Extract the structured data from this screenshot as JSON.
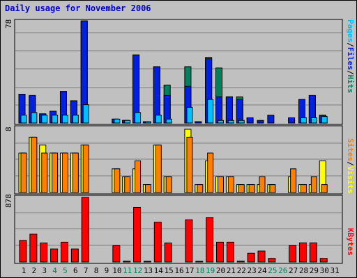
{
  "title": "Daily usage for November 2006",
  "colors": {
    "pages": "#00c0ff",
    "files": "#0020e0",
    "hits": "#00805c",
    "visits": "#ffff00",
    "sites": "#ff8000",
    "kbytes": "#ff0000",
    "weekend_day": "#00805c"
  },
  "labels": {
    "pages": "Pages",
    "files": "Files",
    "hits": "Hits",
    "visits": "Visits",
    "sites": "Sites",
    "kbytes": "KBytes",
    "sep": "/"
  },
  "chart_data": {
    "type": "bar",
    "title": "Daily usage for November 2006",
    "x": [
      1,
      2,
      3,
      4,
      5,
      6,
      7,
      8,
      9,
      10,
      11,
      12,
      13,
      14,
      15,
      16,
      17,
      18,
      19,
      20,
      21,
      22,
      23,
      24,
      25,
      26,
      27,
      28,
      29,
      30,
      31
    ],
    "weekend_days": [
      4,
      5,
      11,
      12,
      18,
      19,
      25,
      26
    ],
    "panels": [
      {
        "name": "hits_files_pages",
        "max_label": "78",
        "max": 78,
        "series": [
          {
            "name": "Hits",
            "values": [
              22,
              21,
              7,
              9,
              24,
              17,
              78,
              0,
              0,
              3,
              2,
              52,
              1,
              43,
              29,
              0,
              43,
              1,
              50,
              42,
              20,
              20,
              0,
              0,
              0,
              0,
              0,
              18,
              21,
              6,
              0
            ]
          },
          {
            "name": "Files",
            "values": [
              22,
              21,
              7,
              9,
              24,
              17,
              78,
              0,
              0,
              3,
              2,
              52,
              1,
              43,
              21,
              0,
              28,
              1,
              49,
              20,
              20,
              18,
              4,
              2,
              6,
              0,
              4,
              18,
              21,
              6,
              0
            ]
          },
          {
            "name": "Pages",
            "values": [
              6,
              8,
              6,
              6,
              6,
              6,
              14,
              0,
              0,
              3,
              2,
              8,
              1,
              6,
              3,
              0,
              12,
              0,
              18,
              2,
              2,
              2,
              0,
              0,
              0,
              0,
              0,
              4,
              4,
              5,
              0
            ]
          }
        ]
      },
      {
        "name": "visits_sites",
        "max_label": "8",
        "max": 8,
        "series": [
          {
            "name": "Visits",
            "values": [
              5,
              7,
              6,
              5,
              5,
              5,
              6,
              0,
              0,
              3,
              2,
              3,
              1,
              6,
              2,
              0,
              8,
              1,
              4,
              2,
              2,
              1,
              1,
              1,
              1,
              0,
              2,
              1,
              1,
              4,
              0
            ]
          },
          {
            "name": "Sites",
            "values": [
              5,
              7,
              5,
              5,
              5,
              5,
              6,
              0,
              0,
              3,
              2,
              4,
              1,
              6,
              2,
              0,
              7,
              1,
              5,
              2,
              2,
              1,
              1,
              2,
              1,
              0,
              3,
              1,
              2,
              1,
              0
            ]
          }
        ]
      },
      {
        "name": "kbytes",
        "max_label": "878",
        "max": 878,
        "series": [
          {
            "name": "KBytes",
            "values": [
              293,
              378,
              258,
              178,
              270,
              178,
              878,
              0,
              0,
              223,
              12,
              741,
              10,
              541,
              258,
              0,
              574,
              10,
              605,
              270,
              270,
              12,
              120,
              150,
              50,
              0,
              223,
              260,
              260,
              50,
              0
            ]
          }
        ]
      }
    ]
  }
}
